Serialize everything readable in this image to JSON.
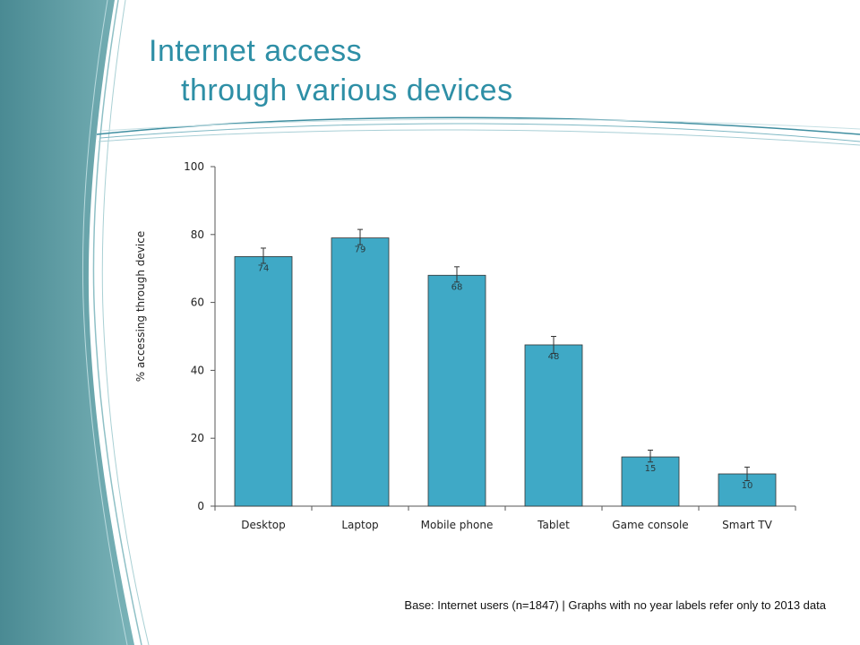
{
  "slide": {
    "title_line1": "Internet access",
    "title_line2": "through various devices",
    "footnote": "Base: Internet users (n=1847) | Graphs with no year labels refer only to 2013 data"
  },
  "colors": {
    "accent": "#2e8fa6",
    "bar_fill": "#3fa9c6",
    "panel_dark": "#4a8a93",
    "panel_light": "#6aaab0"
  },
  "chart_data": {
    "type": "bar",
    "ylabel": "% accessing through device",
    "xlabel": "",
    "ylim": [
      0,
      100
    ],
    "yticks": [
      0,
      20,
      40,
      60,
      80,
      100
    ],
    "categories": [
      "Desktop",
      "Laptop",
      "Mobile phone",
      "Tablet",
      "Game console",
      "Smart TV"
    ],
    "values": [
      73.5,
      79,
      68,
      47.5,
      14.5,
      9.5
    ],
    "labels": [
      "74",
      "79",
      "68",
      "48",
      "15",
      "10"
    ],
    "error_high": [
      76,
      81.5,
      70.5,
      50,
      16.5,
      11.5
    ],
    "error_low": [
      71.5,
      77,
      66,
      45,
      13,
      7.5
    ],
    "grid": false,
    "legend": "none"
  }
}
